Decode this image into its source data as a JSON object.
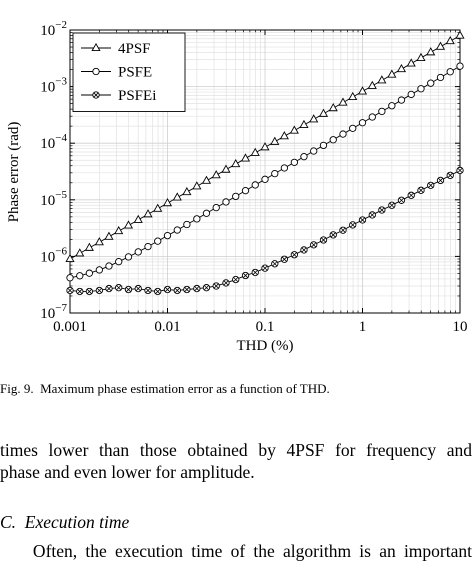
{
  "chart_data": {
    "type": "line",
    "xlabel": "THD (%)",
    "ylabel": "Phase error (rad)",
    "xscale": "log",
    "yscale": "log",
    "grid": true,
    "minor_grid": true,
    "legend": "upper left",
    "xlim": [
      0.001,
      10
    ],
    "xticks": [
      0.001,
      0.01,
      0.1,
      1,
      10
    ],
    "ylim": [
      1e-07,
      0.01
    ],
    "yticks": [
      {
        "value": 1e-07,
        "label": "10−7"
      },
      {
        "value": 1e-06,
        "label": "10−6"
      },
      {
        "value": 1e-05,
        "label": "10−5"
      },
      {
        "value": 0.0001,
        "label": "10−4"
      },
      {
        "value": 0.001,
        "label": "10−3"
      },
      {
        "value": 0.01,
        "label": "10−2"
      }
    ],
    "x": [
      0.001,
      0.00126,
      0.00158,
      0.002,
      0.00251,
      0.00316,
      0.00398,
      0.00501,
      0.00631,
      0.00794,
      0.01,
      0.0126,
      0.0158,
      0.02,
      0.0251,
      0.0316,
      0.0398,
      0.0501,
      0.0631,
      0.0794,
      0.1,
      0.126,
      0.158,
      0.2,
      0.251,
      0.316,
      0.398,
      0.501,
      0.631,
      0.794,
      1,
      1.26,
      1.58,
      2,
      2.51,
      3.16,
      3.98,
      5.01,
      6.31,
      7.94,
      10
    ],
    "series": [
      {
        "name": "4PSF",
        "color": "#000000",
        "marker": "triangle",
        "values": [
          9e-07,
          1.13e-06,
          1.42e-06,
          1.78e-06,
          2.23e-06,
          2.8e-06,
          3.52e-06,
          4.42e-06,
          5.55e-06,
          6.95e-06,
          8.73e-06,
          1.1e-05,
          1.37e-05,
          1.73e-05,
          2.17e-05,
          2.72e-05,
          3.41e-05,
          4.28e-05,
          5.38e-05,
          6.75e-05,
          8.47e-05,
          0.000106,
          0.000133,
          0.000167,
          0.00021,
          0.000264,
          0.000331,
          0.000416,
          0.000522,
          0.000655,
          0.000822,
          0.00103,
          0.00129,
          0.00163,
          0.00204,
          0.00256,
          0.00321,
          0.00404,
          0.00507,
          0.00636,
          0.00798
        ]
      },
      {
        "name": "PSFE",
        "color": "#000000",
        "marker": "circle",
        "values": [
          4.19e-07,
          4.54e-07,
          5.05e-07,
          5.77e-07,
          6.76e-07,
          8.07e-07,
          9.8e-07,
          1.2e-06,
          1.49e-06,
          1.86e-06,
          2.33e-06,
          2.92e-06,
          3.66e-06,
          4.6e-06,
          5.78e-06,
          7.27e-06,
          9.16e-06,
          1.15e-05,
          1.45e-05,
          1.83e-05,
          2.3e-05,
          2.9e-05,
          3.65e-05,
          4.59e-05,
          5.78e-05,
          7.27e-05,
          9.16e-05,
          0.000115,
          0.000145,
          0.000183,
          0.00023,
          0.00029,
          0.000365,
          0.000459,
          0.000578,
          0.000727,
          0.000916,
          0.00115,
          0.00145,
          0.00183,
          0.0023
        ]
      },
      {
        "name": "PSFEi",
        "color": "#000000",
        "marker": "circle-x",
        "values": [
          2.5e-07,
          2.4e-07,
          2.4e-07,
          2.5e-07,
          2.7e-07,
          2.8e-07,
          2.6e-07,
          2.7e-07,
          2.5e-07,
          2.4e-07,
          2.6e-07,
          2.5e-07,
          2.6e-07,
          2.7e-07,
          2.8e-07,
          3e-07,
          3.4e-07,
          3.9e-07,
          4.6e-07,
          5.2e-07,
          6.2e-07,
          7.4e-07,
          8.9e-07,
          1.07e-06,
          1.3e-06,
          1.6e-06,
          1.95e-06,
          2.4e-06,
          2.9e-06,
          3.6e-06,
          4.4e-06,
          5.4e-06,
          6.6e-06,
          8e-06,
          9.8e-06,
          1.2e-05,
          1.47e-05,
          1.8e-05,
          2.2e-05,
          2.7e-05,
          3.3e-05
        ]
      }
    ]
  },
  "caption": "Fig. 9.  Maximum phase estimation error as a function of THD.",
  "body": {
    "paragraph_lines": [
      "times lower than those obtained by 4PSF for frequency and",
      "phase and even lower for amplitude."
    ],
    "section_heading": "C.  Execution time",
    "paragraph2_lines": [
      "    Often, the execution time of the algorithm is an important"
    ]
  }
}
